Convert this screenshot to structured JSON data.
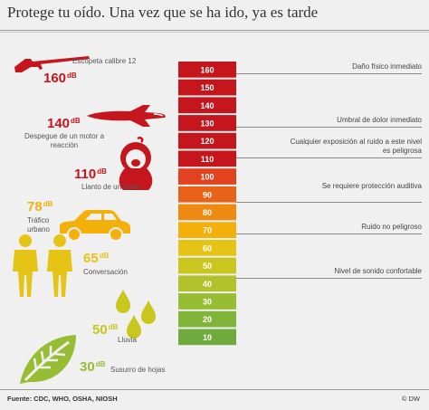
{
  "header": {
    "title": "Protege tu oído. Una vez que se ha ido, ya es tarde"
  },
  "chart_data": {
    "type": "bar",
    "title": "Protege tu oído. Una vez que se ha ido, ya es tarde",
    "categories": [
      "160",
      "150",
      "140",
      "130",
      "120",
      "110",
      "100",
      "90",
      "80",
      "70",
      "60",
      "50",
      "40",
      "30",
      "20",
      "10"
    ],
    "values": [
      160,
      150,
      140,
      130,
      120,
      110,
      100,
      90,
      80,
      70,
      60,
      50,
      40,
      30,
      20,
      10
    ],
    "colors": [
      "#c5161d",
      "#c5161d",
      "#c5161d",
      "#c5161d",
      "#c5161d",
      "#c5161d",
      "#e2421e",
      "#e8621a",
      "#ee8a12",
      "#f4b00a",
      "#e6c415",
      "#c9c61e",
      "#b1c22a",
      "#96bd33",
      "#80b53a",
      "#6eaa3c"
    ],
    "descriptions": [
      {
        "level": 160,
        "text": "Daño físico inmediato"
      },
      {
        "level": 130,
        "text": "Umbral de dolor inmediato"
      },
      {
        "level": 115,
        "text": "Cualquier exposición al ruido a este nivel es peligrosa"
      },
      {
        "level": 90,
        "text": "Se requiere protección auditiva"
      },
      {
        "level": 70,
        "text": "Ruido no peligroso"
      },
      {
        "level": 45,
        "text": "Nivel de sonido confortable"
      }
    ],
    "sources": [
      {
        "db": "160",
        "unit": "dB",
        "label": "Escopeta calibre 12",
        "icon": "shotgun-icon",
        "color": "#c5161d"
      },
      {
        "db": "140",
        "unit": "dB",
        "label": "Despegue de un motor a reacción",
        "icon": "jet-icon",
        "color": "#c5161d"
      },
      {
        "db": "110",
        "unit": "dB",
        "label": "Llanto de un bebé",
        "icon": "baby-icon",
        "color": "#c5161d"
      },
      {
        "db": "78",
        "unit": "dB",
        "label": "Tráfico urbano",
        "icon": "car-icon",
        "color": "#f4b00a"
      },
      {
        "db": "65",
        "unit": "dB",
        "label": "Conversación",
        "icon": "people-icon",
        "color": "#e6c415"
      },
      {
        "db": "50",
        "unit": "dB",
        "label": "Lluvia",
        "icon": "raindrops-icon",
        "color": "#c9c61e"
      },
      {
        "db": "30",
        "unit": "dB",
        "label": "Susurro de hojas",
        "icon": "leaf-icon",
        "color": "#96bd33"
      }
    ]
  },
  "footer": {
    "source": "Fuente: CDC, WHO, OSHA, NIOSH",
    "credit": "© DW"
  }
}
